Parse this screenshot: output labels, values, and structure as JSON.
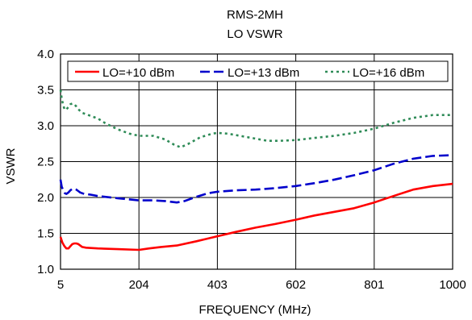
{
  "chart_data": {
    "type": "line",
    "title": "RMS-2MH",
    "subtitle": "LO VSWR",
    "xlabel": "FREQUENCY (MHz)",
    "ylabel": "VSWR",
    "xlim": [
      5,
      1000
    ],
    "ylim": [
      1.0,
      4.0
    ],
    "xticks": [
      5,
      204,
      403,
      602,
      801,
      1000
    ],
    "yticks": [
      1.0,
      1.5,
      2.0,
      2.5,
      3.0,
      3.5,
      4.0
    ],
    "xtick_labels": [
      "5",
      "204",
      "403",
      "602",
      "801",
      "1000"
    ],
    "ytick_labels": [
      "1.0",
      "1.5",
      "2.0",
      "2.5",
      "3.0",
      "3.5",
      "4.0"
    ],
    "grid": true,
    "legend_position": "top",
    "series": [
      {
        "name": "LO=+10 dBm",
        "color": "#ff0000",
        "dash": "solid",
        "points": [
          [
            5,
            1.45
          ],
          [
            10,
            1.37
          ],
          [
            15,
            1.32
          ],
          [
            20,
            1.29
          ],
          [
            25,
            1.29
          ],
          [
            30,
            1.32
          ],
          [
            35,
            1.35
          ],
          [
            40,
            1.36
          ],
          [
            45,
            1.36
          ],
          [
            50,
            1.35
          ],
          [
            55,
            1.33
          ],
          [
            60,
            1.31
          ],
          [
            70,
            1.3
          ],
          [
            100,
            1.29
          ],
          [
            150,
            1.28
          ],
          [
            204,
            1.27
          ],
          [
            230,
            1.29
          ],
          [
            260,
            1.31
          ],
          [
            300,
            1.33
          ],
          [
            350,
            1.39
          ],
          [
            403,
            1.46
          ],
          [
            450,
            1.52
          ],
          [
            500,
            1.58
          ],
          [
            550,
            1.63
          ],
          [
            602,
            1.69
          ],
          [
            650,
            1.75
          ],
          [
            700,
            1.8
          ],
          [
            750,
            1.85
          ],
          [
            801,
            1.93
          ],
          [
            850,
            2.02
          ],
          [
            900,
            2.11
          ],
          [
            950,
            2.16
          ],
          [
            1000,
            2.19
          ]
        ]
      },
      {
        "name": "LO=+13 dBm",
        "color": "#0000cc",
        "dash": "long",
        "points": [
          [
            5,
            2.25
          ],
          [
            8,
            2.15
          ],
          [
            12,
            2.1
          ],
          [
            16,
            2.06
          ],
          [
            20,
            2.05
          ],
          [
            25,
            2.07
          ],
          [
            30,
            2.1
          ],
          [
            35,
            2.12
          ],
          [
            40,
            2.12
          ],
          [
            45,
            2.11
          ],
          [
            50,
            2.09
          ],
          [
            55,
            2.07
          ],
          [
            65,
            2.05
          ],
          [
            80,
            2.04
          ],
          [
            100,
            2.02
          ],
          [
            150,
            1.99
          ],
          [
            204,
            1.96
          ],
          [
            240,
            1.96
          ],
          [
            270,
            1.95
          ],
          [
            300,
            1.93
          ],
          [
            320,
            1.95
          ],
          [
            350,
            2.01
          ],
          [
            380,
            2.06
          ],
          [
            403,
            2.08
          ],
          [
            450,
            2.1
          ],
          [
            500,
            2.11
          ],
          [
            550,
            2.13
          ],
          [
            602,
            2.16
          ],
          [
            650,
            2.2
          ],
          [
            700,
            2.25
          ],
          [
            750,
            2.31
          ],
          [
            801,
            2.38
          ],
          [
            850,
            2.47
          ],
          [
            900,
            2.54
          ],
          [
            950,
            2.58
          ],
          [
            1000,
            2.59
          ]
        ]
      },
      {
        "name": "LO=+16 dBm",
        "color": "#2e8b57",
        "dash": "dot",
        "points": [
          [
            5,
            3.5
          ],
          [
            8,
            3.38
          ],
          [
            12,
            3.28
          ],
          [
            16,
            3.22
          ],
          [
            20,
            3.23
          ],
          [
            25,
            3.26
          ],
          [
            30,
            3.3
          ],
          [
            35,
            3.31
          ],
          [
            40,
            3.3
          ],
          [
            45,
            3.27
          ],
          [
            50,
            3.23
          ],
          [
            60,
            3.18
          ],
          [
            80,
            3.14
          ],
          [
            100,
            3.1
          ],
          [
            120,
            3.03
          ],
          [
            150,
            2.95
          ],
          [
            180,
            2.89
          ],
          [
            204,
            2.86
          ],
          [
            240,
            2.86
          ],
          [
            270,
            2.81
          ],
          [
            295,
            2.73
          ],
          [
            310,
            2.7
          ],
          [
            330,
            2.75
          ],
          [
            360,
            2.84
          ],
          [
            390,
            2.89
          ],
          [
            403,
            2.9
          ],
          [
            430,
            2.89
          ],
          [
            460,
            2.86
          ],
          [
            500,
            2.82
          ],
          [
            530,
            2.79
          ],
          [
            560,
            2.79
          ],
          [
            602,
            2.8
          ],
          [
            650,
            2.83
          ],
          [
            700,
            2.86
          ],
          [
            750,
            2.9
          ],
          [
            801,
            2.96
          ],
          [
            850,
            3.04
          ],
          [
            900,
            3.11
          ],
          [
            950,
            3.15
          ],
          [
            1000,
            3.15
          ]
        ]
      }
    ]
  }
}
